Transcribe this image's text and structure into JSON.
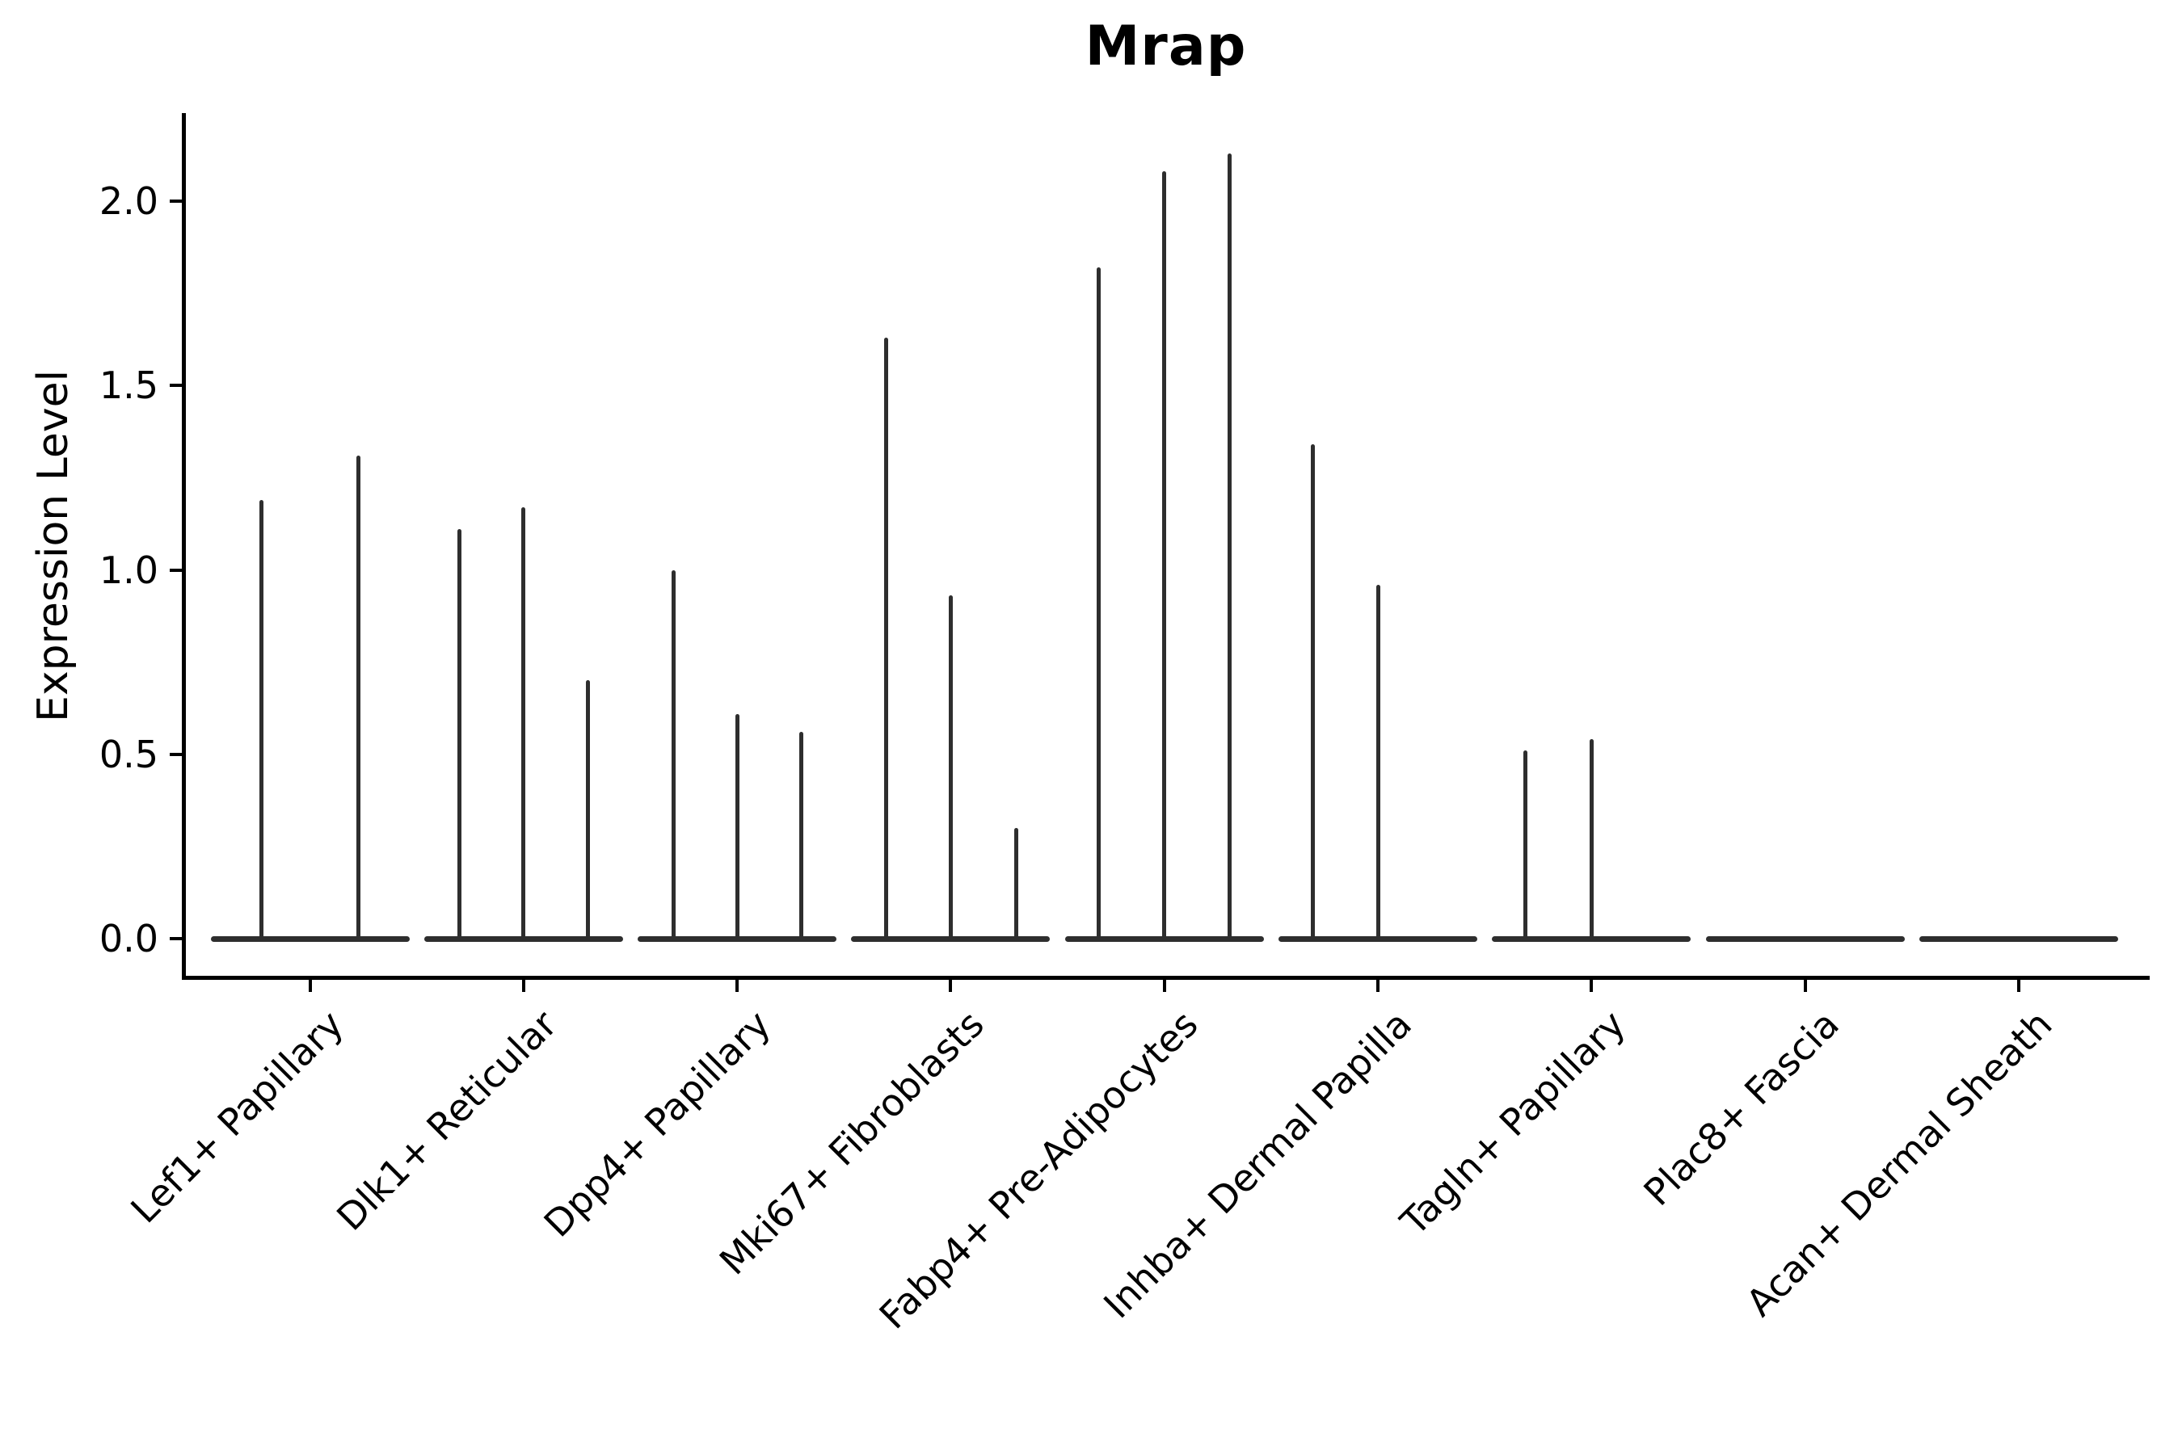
{
  "chart_data": {
    "type": "violin",
    "title": "Mrap",
    "xlabel": "",
    "ylabel": "Expression Level",
    "yticks": [
      {
        "label": "0.0",
        "value": 0.0
      },
      {
        "label": "0.5",
        "value": 0.5
      },
      {
        "label": "1.0",
        "value": 1.0
      },
      {
        "label": "1.5",
        "value": 1.5
      },
      {
        "label": "2.0",
        "value": 2.0
      }
    ],
    "ylim": [
      -0.11,
      2.24
    ],
    "grid": false,
    "legend": false,
    "spines": [
      "left",
      "bottom"
    ],
    "categories": [
      "Lef1+ Papillary",
      "Dlk1+ Reticular",
      "Dpp4+ Papillary",
      "Mki67+ Fibroblasts",
      "Fabp4+ Pre-Adipocytes",
      "Inhba+ Dermal Papilla",
      "Tagln+ Papillary",
      "Plac8+ Fascia",
      "Acan+ Dermal Sheath"
    ],
    "violins": [
      {
        "category": "Lef1+ Papillary",
        "baseline_value": 0,
        "spikes": [
          {
            "dx": -60,
            "value": 1.19
          },
          {
            "dx": 60,
            "value": 1.31
          }
        ]
      },
      {
        "category": "Dlk1+ Reticular",
        "baseline_value": 0,
        "spikes": [
          {
            "dx": -79,
            "value": 1.11
          },
          {
            "dx": 0,
            "value": 1.17
          },
          {
            "dx": 80,
            "value": 0.7
          }
        ]
      },
      {
        "category": "Dpp4+ Papillary",
        "baseline_value": 0,
        "spikes": [
          {
            "dx": -79,
            "value": 1.0
          },
          {
            "dx": 0,
            "value": 0.61
          },
          {
            "dx": 79,
            "value": 0.56
          }
        ]
      },
      {
        "category": "Mki67+ Fibroblasts",
        "baseline_value": 0,
        "spikes": [
          {
            "dx": -80,
            "value": 1.63
          },
          {
            "dx": 0,
            "value": 0.93
          },
          {
            "dx": 81,
            "value": 0.3
          }
        ]
      },
      {
        "category": "Fabp4+ Pre-Adipocytes",
        "baseline_value": 0,
        "spikes": [
          {
            "dx": -81,
            "value": 1.82
          },
          {
            "dx": 0,
            "value": 2.08
          },
          {
            "dx": 81,
            "value": 2.13
          }
        ]
      },
      {
        "category": "Inhba+ Dermal Papilla",
        "baseline_value": 0,
        "spikes": [
          {
            "dx": -81,
            "value": 1.34
          },
          {
            "dx": 0,
            "value": 0.96
          }
        ]
      },
      {
        "category": "Tagln+ Papillary",
        "baseline_value": 0,
        "spikes": [
          {
            "dx": -82,
            "value": 0.51
          },
          {
            "dx": 0,
            "value": 0.54
          }
        ]
      },
      {
        "category": "Plac8+ Fascia",
        "baseline_value": 0,
        "spikes": []
      },
      {
        "category": "Acan+ Dermal Sheath",
        "baseline_value": 0,
        "spikes": []
      }
    ],
    "colors": {
      "violin": "#2e2e2e",
      "axis": "#000000",
      "text": "#000000",
      "background": "#ffffff"
    }
  }
}
